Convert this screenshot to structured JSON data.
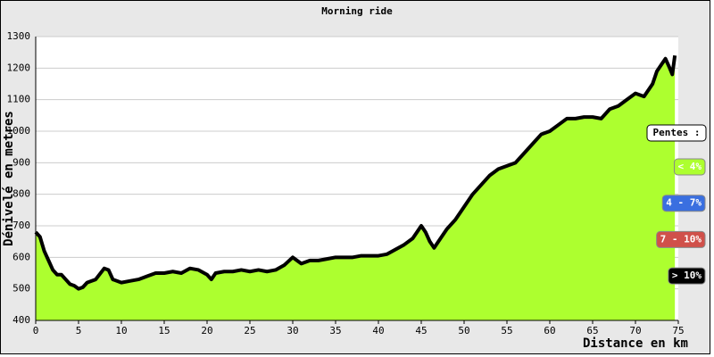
{
  "chart_data": {
    "type": "area",
    "title": "Morning ride",
    "x_label": "Distance en km",
    "y_label": "Dénivelé en metres",
    "x": [
      0,
      0.5,
      1,
      1.5,
      2,
      2.5,
      3,
      3.5,
      4,
      4.5,
      5,
      5.5,
      6,
      7,
      8,
      8.5,
      9,
      10,
      11,
      12,
      13,
      14,
      15,
      16,
      17,
      18,
      19,
      20,
      20.5,
      21,
      22,
      23,
      24,
      25,
      26,
      27,
      28,
      29,
      30,
      30.5,
      31,
      32,
      33,
      34,
      35,
      36,
      37,
      38,
      39,
      40,
      41,
      42,
      43,
      44,
      44.5,
      45,
      45.5,
      46,
      46.5,
      47,
      48,
      49,
      50,
      51,
      52,
      53,
      54,
      55,
      56,
      57,
      58,
      59,
      60,
      61,
      62,
      63,
      64,
      65,
      66,
      67,
      68,
      69,
      70,
      71,
      72,
      72.5,
      73,
      73.5,
      74,
      74.3,
      74.6
    ],
    "values": [
      680,
      665,
      620,
      590,
      560,
      545,
      545,
      530,
      515,
      510,
      500,
      505,
      520,
      530,
      565,
      560,
      530,
      520,
      525,
      530,
      540,
      550,
      550,
      555,
      550,
      565,
      560,
      545,
      530,
      550,
      555,
      555,
      560,
      555,
      560,
      555,
      560,
      575,
      600,
      590,
      580,
      590,
      590,
      595,
      600,
      600,
      600,
      605,
      605,
      605,
      610,
      625,
      640,
      660,
      680,
      700,
      680,
      650,
      630,
      650,
      690,
      720,
      760,
      800,
      830,
      860,
      880,
      890,
      900,
      930,
      960,
      990,
      1000,
      1020,
      1040,
      1040,
      1045,
      1045,
      1040,
      1070,
      1080,
      1100,
      1120,
      1110,
      1150,
      1190,
      1210,
      1230,
      1200,
      1180,
      1240
    ],
    "fill_color": "#adff2f",
    "line_color": "#000000",
    "xlim": [
      0,
      75
    ],
    "xticks": [
      0,
      5,
      10,
      15,
      20,
      25,
      30,
      35,
      40,
      45,
      50,
      55,
      60,
      65,
      70,
      75
    ],
    "ylim": [
      400,
      1300
    ],
    "yticks": [
      400,
      500,
      600,
      700,
      800,
      900,
      1000,
      1100,
      1200,
      1300
    ],
    "grid": true,
    "legend": {
      "title": "Pentes :",
      "items": [
        {
          "label": "< 4%",
          "color": "#adff2f"
        },
        {
          "label": "4 - 7%",
          "color": "#3a6fe0"
        },
        {
          "label": "7 - 10%",
          "color": "#d0504a"
        },
        {
          "label": "> 10%",
          "color": "#000000"
        }
      ]
    }
  }
}
